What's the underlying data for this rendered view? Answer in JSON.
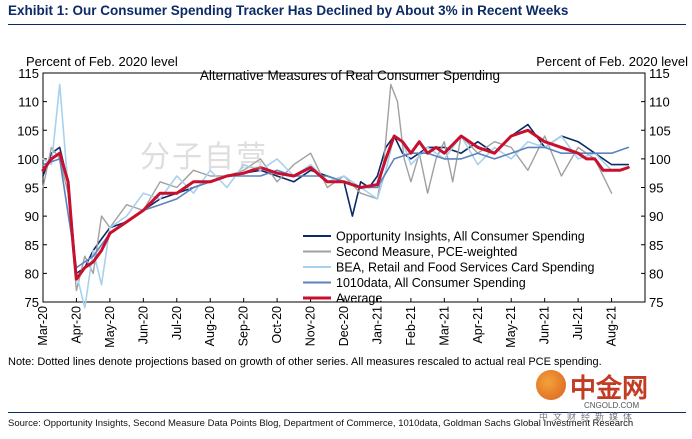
{
  "exhibit_title": "Exhibit 1: Our Consumer Spending Tracker Has Declined by About 3% in Recent Weeks",
  "note": "Note: Dotted lines denote projections based on growth of other series. All measures rescaled to actual real PCE spending.",
  "source": "Source: Opportunity Insights, Second Measure Data Points Blog, Department of Commerce, 1010data, Goldman Sachs Global Investment Research",
  "watermark": "分子自营",
  "logo": {
    "name": "中金网",
    "domain": "CNGOLD.COM",
    "subtitle": "中文财经新媒体"
  },
  "chart_data": {
    "type": "line",
    "title": "Alternative Measures of Real Consumer Spending",
    "ylabel_left": "Percent of Feb. 2020 level",
    "ylabel_right": "Percent of Feb. 2020 level",
    "ylim": [
      75,
      115
    ],
    "yticks": [
      75,
      80,
      85,
      90,
      95,
      100,
      105,
      110,
      115
    ],
    "ytick_labels": [
      "75",
      "80",
      "85",
      "90",
      "95",
      "100",
      "105",
      "110",
      "115"
    ],
    "xlim": [
      0,
      18
    ],
    "xticks": [
      0,
      1,
      2,
      3,
      4,
      5,
      6,
      7,
      8,
      9,
      10,
      11,
      12,
      13,
      14,
      15,
      16,
      17
    ],
    "xtick_labels": [
      "Mar-20",
      "Apr-20",
      "May-20",
      "Jun-20",
      "Jul-20",
      "Aug-20",
      "Sep-20",
      "Oct-20",
      "Nov-20",
      "Dec-20",
      "Jan-21",
      "Feb-21",
      "Mar-21",
      "Apr-21",
      "May-21",
      "Jun-21",
      "Jul-21",
      "Aug-21"
    ],
    "grid": false,
    "legend_position": "lower-right",
    "series": [
      {
        "name": "Opportunity Insights, All Consumer Spending",
        "color": "#0b2a66",
        "width": 1.6,
        "x": [
          0,
          0.25,
          0.5,
          0.75,
          1,
          1.25,
          1.5,
          1.75,
          2,
          2.5,
          3,
          3.5,
          4,
          4.5,
          5,
          5.5,
          6,
          6.5,
          7,
          7.5,
          8,
          8.5,
          9,
          9.25,
          9.5,
          9.75,
          10,
          10.25,
          10.5,
          10.75,
          11,
          11.5,
          12,
          12.5,
          13,
          13.5,
          14,
          14.5,
          15,
          15.5,
          16,
          16.25,
          16.5,
          16.75,
          17,
          17.25,
          17.5
        ],
        "y": [
          97,
          101,
          102,
          96,
          80,
          81,
          84,
          86,
          88,
          89,
          91,
          93,
          94,
          95,
          96,
          97,
          97.5,
          98,
          97,
          96,
          98,
          97,
          96,
          90,
          96,
          95,
          97,
          102,
          104,
          101,
          100,
          102,
          102,
          101,
          103,
          101,
          104,
          106,
          102,
          104,
          103,
          102,
          101,
          100,
          99,
          99,
          99
        ]
      },
      {
        "name": "Second Measure, PCE-weighted",
        "color": "#a0a0a0",
        "width": 1.4,
        "x": [
          0,
          0.25,
          0.5,
          0.75,
          1,
          1.25,
          1.5,
          1.75,
          2,
          2.5,
          3,
          3.5,
          4,
          4.5,
          5,
          5.5,
          6,
          6.5,
          7,
          7.5,
          8,
          8.5,
          9,
          9.5,
          10,
          10.2,
          10.4,
          10.6,
          10.8,
          11,
          11.25,
          11.5,
          11.75,
          12,
          12.25,
          12.5,
          13,
          13.5,
          14,
          14.5,
          15,
          15.5,
          16,
          16.5,
          17
        ],
        "y": [
          95,
          102,
          100,
          94,
          77,
          83,
          80,
          90,
          88,
          92,
          91,
          96,
          95,
          98,
          97,
          97,
          98,
          100,
          96,
          99,
          101,
          95,
          97,
          94,
          93,
          100,
          113,
          110,
          100,
          96,
          101,
          94,
          100,
          103,
          96,
          104,
          101,
          103,
          102,
          98,
          104,
          97,
          102,
          100,
          94
        ]
      },
      {
        "name": "BEA, Retail and Food Services Card Spending",
        "color": "#a8d1ef",
        "width": 1.6,
        "x": [
          0,
          0.25,
          0.5,
          0.75,
          1,
          1.25,
          1.5,
          1.75,
          2,
          2.5,
          3,
          3.5,
          4,
          4.5,
          5,
          5.5,
          6,
          6.5,
          7,
          7.5,
          8,
          8.5,
          9,
          9.5,
          10,
          10.25,
          10.5,
          10.75,
          11,
          11.5,
          12,
          12.5,
          13,
          13.5,
          14,
          14.5,
          15,
          15.5,
          16,
          16.5,
          17
        ],
        "y": [
          100,
          99,
          113,
          95,
          80,
          74,
          84,
          78,
          88,
          90,
          94,
          93,
          97,
          94,
          98,
          95,
          99,
          98,
          100,
          97,
          99,
          96,
          97,
          95,
          93,
          98,
          104,
          103,
          99,
          102,
          100,
          104,
          99,
          102,
          100,
          103,
          102,
          104,
          100,
          101,
          98
        ]
      },
      {
        "name": "1010data, All Consumer Spending",
        "color": "#5b83bd",
        "width": 1.6,
        "x": [
          0,
          0.5,
          1,
          1.5,
          2,
          2.5,
          3,
          3.5,
          4,
          4.5,
          5,
          5.5,
          6,
          6.5,
          7,
          7.5,
          8,
          8.5,
          9,
          9.5,
          10,
          10.5,
          11,
          11.5,
          12,
          12.5,
          13,
          13.5,
          14,
          14.5,
          15,
          15.5,
          16,
          16.5,
          17,
          17.5
        ],
        "y": [
          99,
          100,
          81,
          83,
          87,
          89,
          91,
          92,
          93,
          95,
          96,
          97,
          97,
          97,
          98,
          97,
          97,
          97,
          96,
          95,
          95,
          100,
          101,
          101,
          100,
          100,
          101,
          100,
          101,
          102,
          102,
          101,
          101,
          101,
          101,
          102
        ]
      },
      {
        "name": "Average",
        "color": "#c8102e",
        "width": 3,
        "x": [
          0,
          0.25,
          0.5,
          0.75,
          0.9,
          1,
          1.25,
          1.5,
          1.75,
          2,
          2.5,
          3,
          3.5,
          4,
          4.5,
          5,
          5.5,
          6,
          6.5,
          7,
          7.5,
          8,
          8.5,
          9,
          9.5,
          10,
          10.25,
          10.5,
          10.75,
          11,
          11.25,
          11.5,
          11.75,
          12,
          12.5,
          13,
          13.5,
          14,
          14.5,
          15,
          15.5,
          16,
          16.25,
          16.5,
          16.75,
          17,
          17.25,
          17.5
        ],
        "y": [
          98,
          100,
          101,
          96,
          85,
          79,
          81,
          82,
          84,
          87,
          89,
          91,
          94,
          94,
          96,
          96,
          97,
          97.5,
          98.5,
          97.5,
          97,
          98.5,
          96,
          96,
          95,
          95.5,
          100,
          104,
          103,
          101,
          103,
          101,
          102,
          101,
          104,
          102,
          101,
          104,
          105,
          103,
          102,
          101,
          100,
          100,
          98,
          98,
          98,
          98.5
        ]
      }
    ]
  }
}
